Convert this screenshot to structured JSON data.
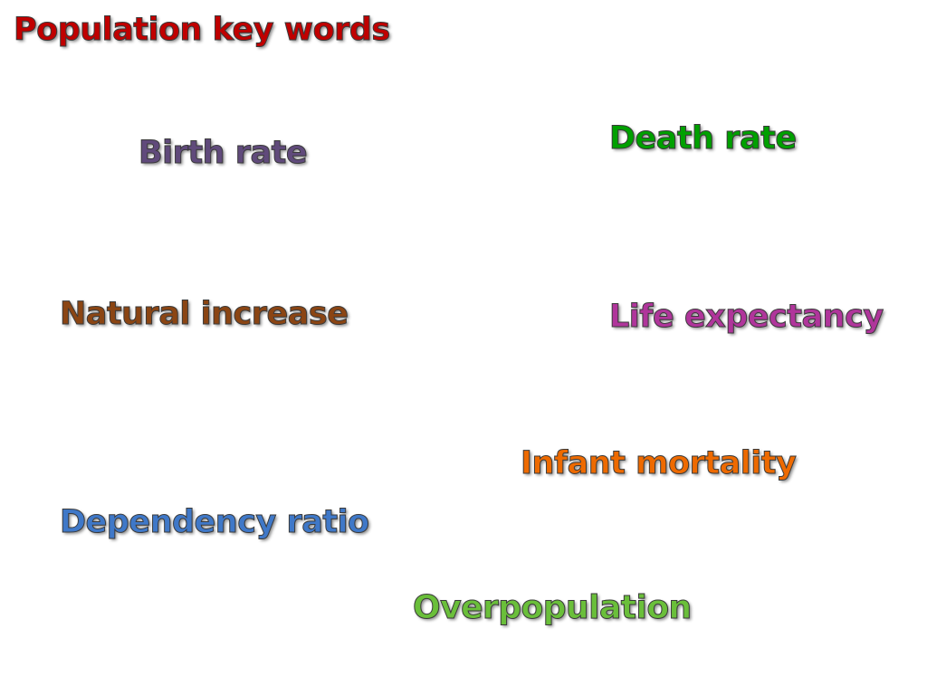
{
  "slide": {
    "title": "Population key words",
    "words": {
      "birth_rate": "Birth rate",
      "death_rate": "Death rate",
      "natural_increase": "Natural increase",
      "life_expectancy": "Life expectancy",
      "infant_mortality": "Infant mortality",
      "dependency_ratio": "Dependency ratio",
      "overpopulation": "Overpopulation"
    }
  },
  "colors": {
    "title": "#c00000",
    "birth_rate": "#604a7b",
    "death_rate": "#00a000",
    "natural_increase": "#8b4513",
    "life_expectancy": "#b0359b",
    "infant_mortality": "#ee6a00",
    "dependency_ratio": "#3f78c8",
    "overpopulation": "#6abf3a"
  }
}
